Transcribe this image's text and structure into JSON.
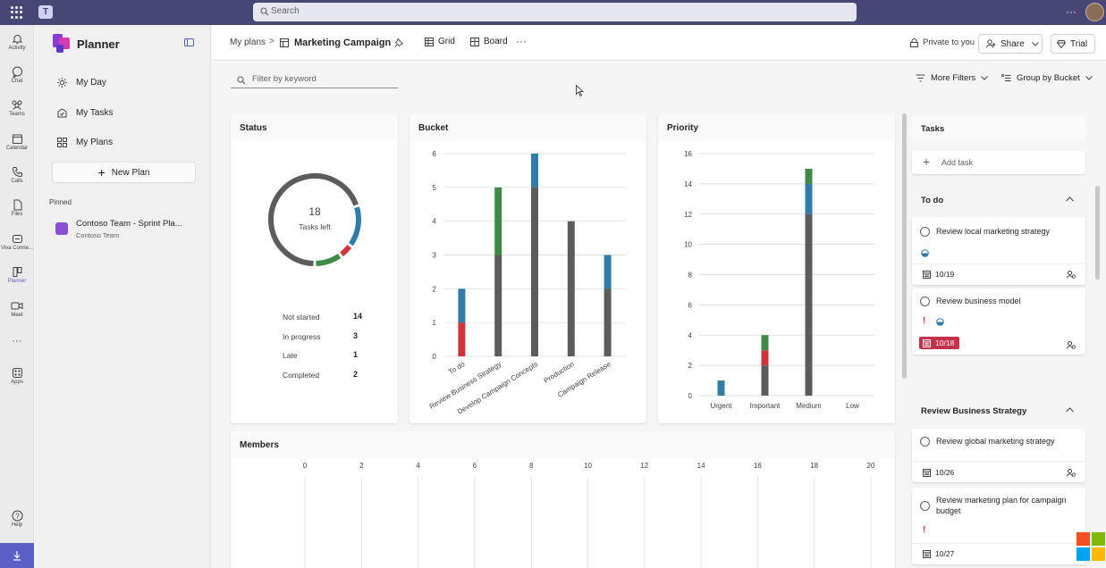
{
  "topbar": {
    "search_placeholder": "Search",
    "more": "···"
  },
  "rail": [
    {
      "label": "Activity",
      "icon": "bell-icon"
    },
    {
      "label": "Chat",
      "icon": "chat-icon"
    },
    {
      "label": "Teams",
      "icon": "teams-icon"
    },
    {
      "label": "Calendar",
      "icon": "calendar-icon"
    },
    {
      "label": "Calls",
      "icon": "phone-icon"
    },
    {
      "label": "Files",
      "icon": "file-icon"
    },
    {
      "label": "Viva Conne...",
      "icon": "viva-icon"
    },
    {
      "label": "Planner",
      "icon": "planner-icon"
    },
    {
      "label": "Meet",
      "icon": "video-icon"
    },
    {
      "label": "Apps",
      "icon": "apps-icon"
    },
    {
      "label": "Help",
      "icon": "help-icon"
    }
  ],
  "rail_more": "···",
  "sidebar": {
    "title": "Planner",
    "nav": [
      {
        "label": "My Day",
        "icon": "sun-icon"
      },
      {
        "label": "My Tasks",
        "icon": "tasks-icon"
      },
      {
        "label": "My Plans",
        "icon": "grid-icon"
      }
    ],
    "new_plan": "New Plan",
    "pinned_header": "Pinned",
    "pinned": [
      {
        "title": "Contoso Team - Sprint Pla...",
        "subtitle": "Contoso Team"
      }
    ]
  },
  "header": {
    "breadcrumb_root": "My plans",
    "breadcrumb_sep": ">",
    "plan_title": "Marketing Campaign",
    "tabs": [
      "Grid",
      "Board"
    ],
    "more": "···",
    "privacy": "Private to you",
    "share": "Share",
    "trial": "Trial"
  },
  "toolbar": {
    "filter_placeholder": "Filter by keyword",
    "more_filters": "More Filters",
    "group_by": "Group by Bucket"
  },
  "colors": {
    "accent": "#5b5fc7",
    "not_started": "#5c5c5c",
    "in_progress": "#2f7ca8",
    "late": "#d13438",
    "completed": "#3f8a46"
  },
  "status_card": {
    "title": "Status",
    "center_number": "18",
    "center_label": "Tasks left",
    "rows": [
      {
        "label": "Not started",
        "value": "14"
      },
      {
        "label": "In progress",
        "value": "3"
      },
      {
        "label": "Late",
        "value": "1"
      },
      {
        "label": "Completed",
        "value": "2"
      }
    ]
  },
  "chart_data": [
    {
      "type": "bar",
      "title": "Bucket",
      "stacked": true,
      "categories": [
        "To do",
        "Review Business Strategy",
        "Develop Campaign Concepts",
        "Production",
        "Campaign Release"
      ],
      "series": [
        {
          "name": "Not started",
          "values": [
            0,
            3,
            5,
            4,
            2
          ]
        },
        {
          "name": "Late",
          "values": [
            1,
            0,
            0,
            0,
            0
          ]
        },
        {
          "name": "In progress",
          "values": [
            1,
            0,
            1,
            0,
            1
          ]
        },
        {
          "name": "Completed",
          "values": [
            0,
            2,
            0,
            0,
            0
          ]
        }
      ],
      "ylim": [
        0,
        6
      ],
      "yticks": [
        0,
        1,
        2,
        3,
        4,
        5,
        6
      ],
      "grid": true
    },
    {
      "type": "bar",
      "title": "Priority",
      "stacked": true,
      "categories": [
        "Urgent",
        "Important",
        "Medium",
        "Low"
      ],
      "series": [
        {
          "name": "Not started",
          "values": [
            0,
            2,
            12,
            0
          ]
        },
        {
          "name": "Late",
          "values": [
            0,
            1,
            0,
            0
          ]
        },
        {
          "name": "In progress",
          "values": [
            1,
            0,
            2,
            0
          ]
        },
        {
          "name": "Completed",
          "values": [
            0,
            1,
            1,
            0
          ]
        }
      ],
      "ylim": [
        0,
        16
      ],
      "yticks": [
        0,
        2,
        4,
        6,
        8,
        10,
        12,
        14,
        16
      ],
      "grid": true
    },
    {
      "type": "pie",
      "title": "Status",
      "categories": [
        "Not started",
        "In progress",
        "Late",
        "Completed"
      ],
      "values": [
        14,
        3,
        1,
        2
      ]
    }
  ],
  "members_card": {
    "title": "Members",
    "xticks": [
      "0",
      "2",
      "4",
      "6",
      "8",
      "10",
      "12",
      "14",
      "16",
      "18",
      "20"
    ]
  },
  "tasks": {
    "title": "Tasks",
    "add_task": "Add task",
    "buckets": [
      {
        "name": "To do",
        "items": [
          {
            "title": "Review local marketing strategy",
            "date": "10/19",
            "late": false
          },
          {
            "title": "Review business model",
            "date": "10/18",
            "late": true
          }
        ]
      },
      {
        "name": "Review Business Strategy",
        "items": [
          {
            "title": "Review global marketing strategy",
            "date": "10/26",
            "late": false
          },
          {
            "title": "Review marketing plan for campaign budget",
            "date": "10/27",
            "late": false
          }
        ]
      }
    ],
    "important_mark": "!"
  }
}
